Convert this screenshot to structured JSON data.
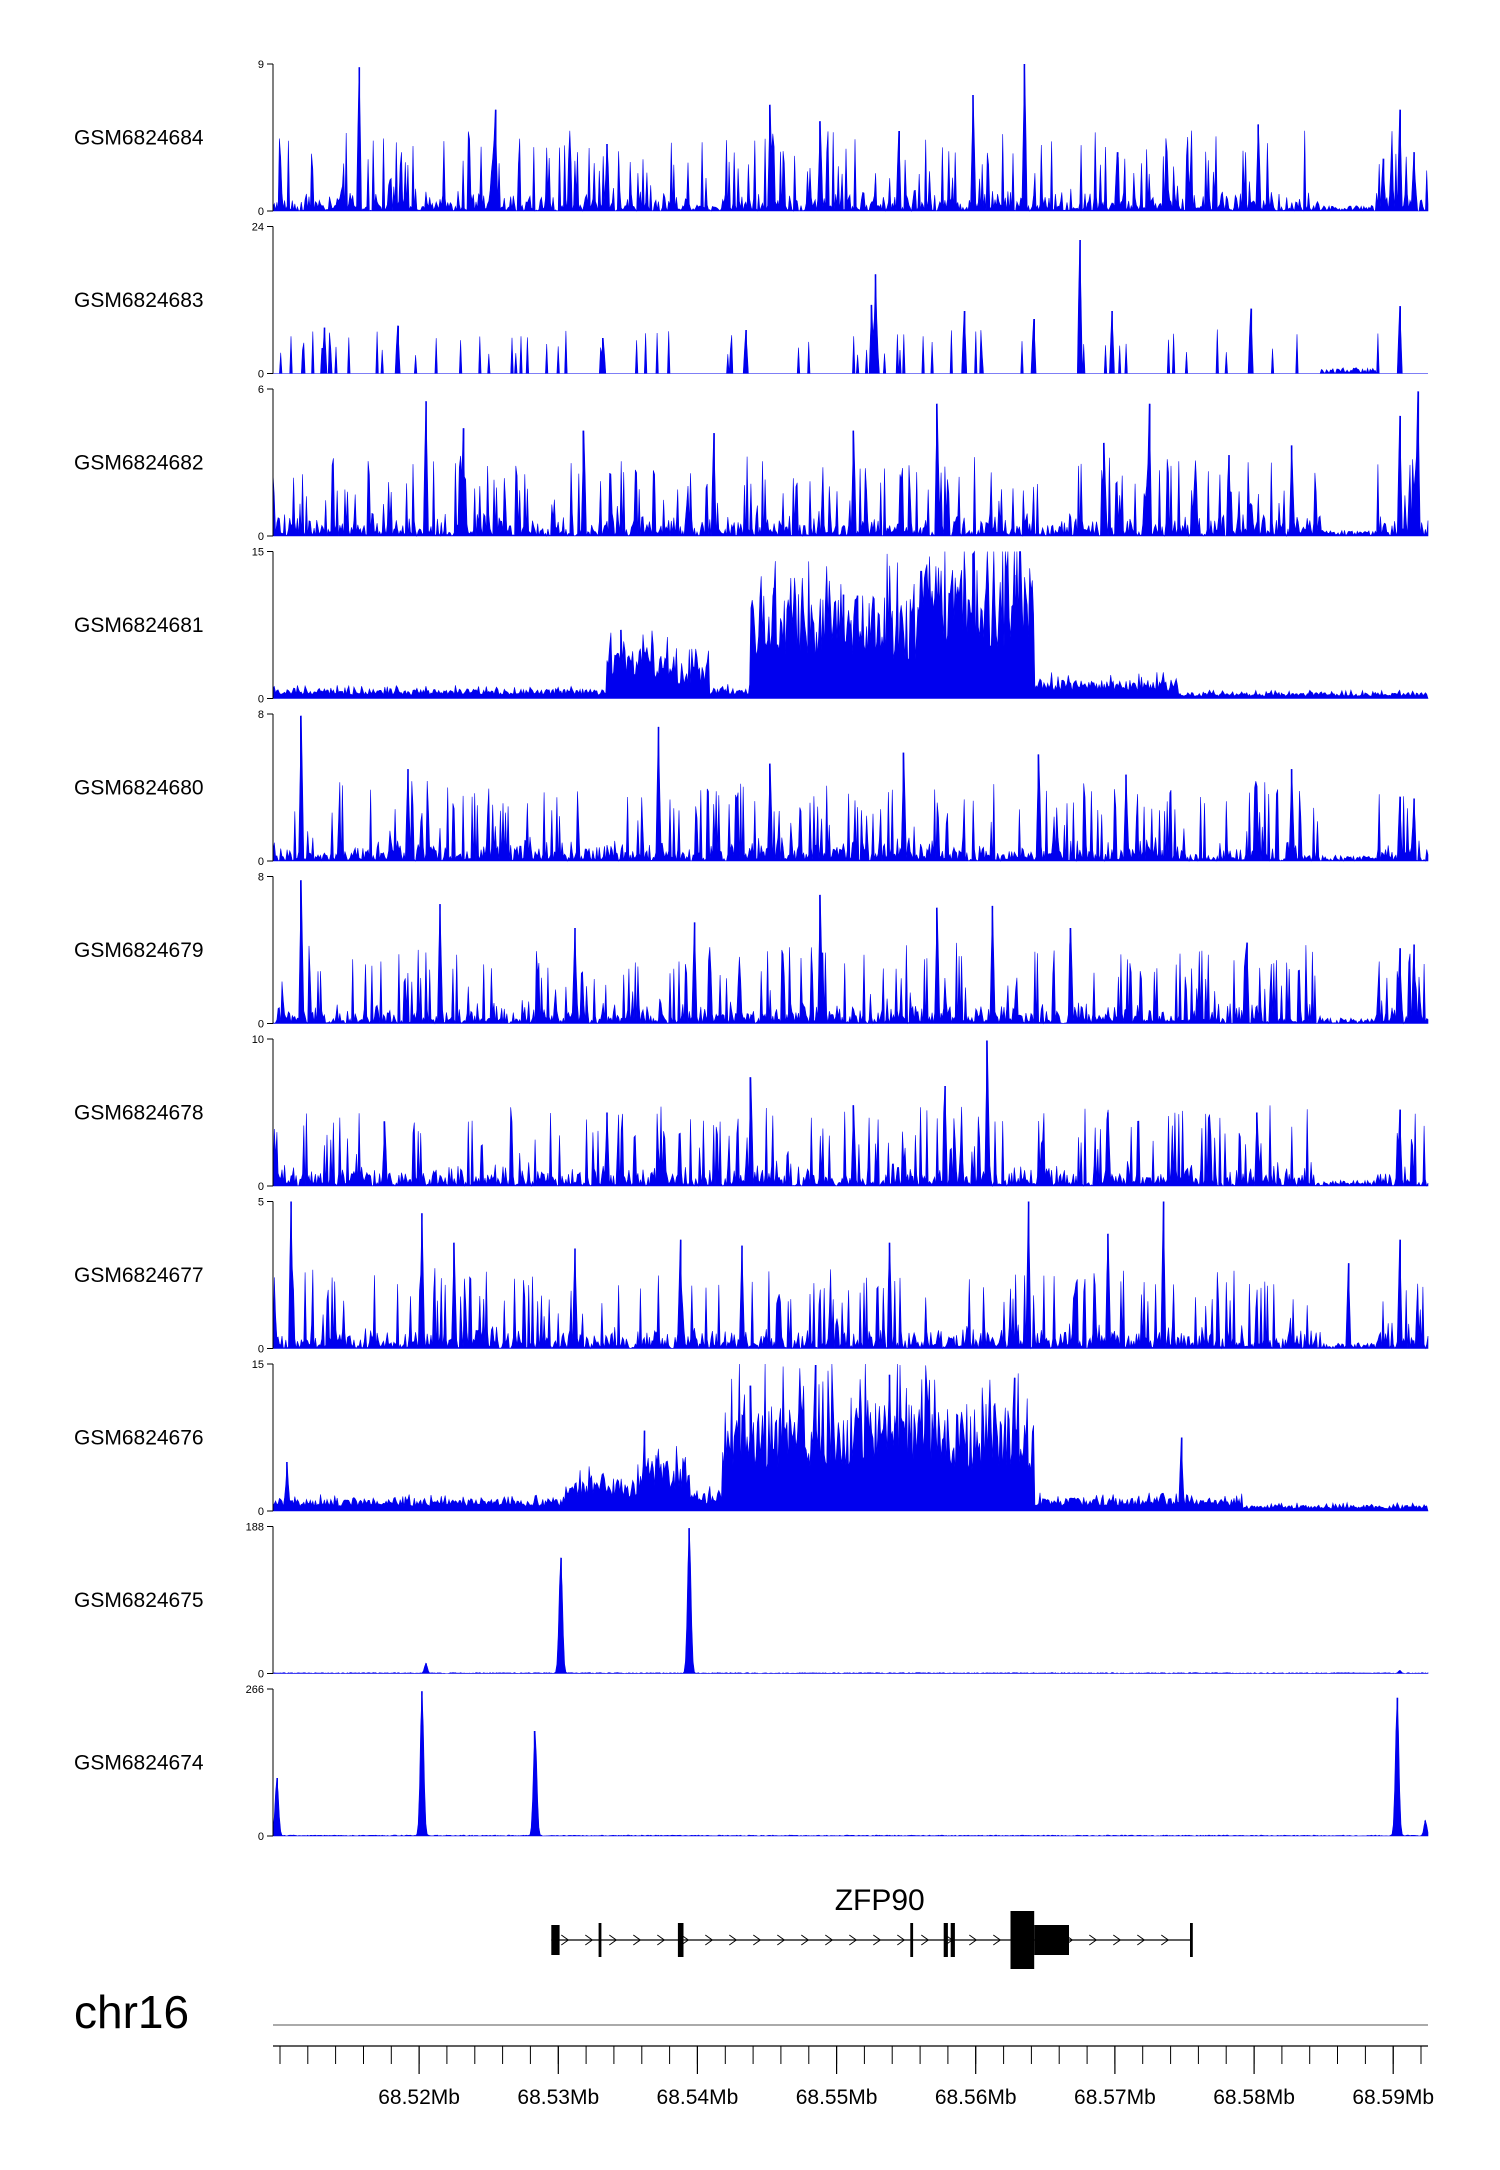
{
  "chart_data": {
    "type": "area",
    "genome": {
      "chromosome": "chr16",
      "xlim": [
        68.5095,
        68.5925
      ],
      "unit": "Mb"
    },
    "x_ticks": [
      68.52,
      68.53,
      68.54,
      68.55,
      68.56,
      68.57,
      68.58,
      68.59
    ],
    "x_tick_labels": [
      "68.52Mb",
      "68.53Mb",
      "68.54Mb",
      "68.55Mb",
      "68.56Mb",
      "68.57Mb",
      "68.58Mb",
      "68.59Mb"
    ],
    "colors": {
      "signal": "#0000ee",
      "axis": "#000000",
      "gene": "#000000"
    },
    "tracks": [
      {
        "name": "GSM6824684",
        "ymin": 0,
        "ymax": 9,
        "ymin_label": "0",
        "ymax_label": "9",
        "profile": "noisy",
        "peaks": [
          [
            68.5157,
            8.8
          ],
          [
            68.5255,
            6.2
          ],
          [
            68.5335,
            4.1
          ],
          [
            68.5452,
            6.5
          ],
          [
            68.5488,
            5.5
          ],
          [
            68.5545,
            4.9
          ],
          [
            68.5598,
            7.1
          ],
          [
            68.5635,
            9.0
          ],
          [
            68.5702,
            3.6
          ],
          [
            68.5803,
            5.3
          ],
          [
            68.5893,
            3.2
          ],
          [
            68.5905,
            6.2
          ],
          [
            68.5915,
            3.6
          ]
        ]
      },
      {
        "name": "GSM6824683",
        "ymin": 0,
        "ymax": 24,
        "ymin_label": "0",
        "ymax_label": "24",
        "profile": "sparse",
        "peaks": [
          [
            68.5132,
            7.5
          ],
          [
            68.5185,
            7.8
          ],
          [
            68.5332,
            5.8
          ],
          [
            68.5435,
            7.1
          ],
          [
            68.5525,
            11.2
          ],
          [
            68.5528,
            16.2
          ],
          [
            68.5592,
            10.2
          ],
          [
            68.5642,
            8.9
          ],
          [
            68.5675,
            21.8
          ],
          [
            68.5698,
            10.2
          ],
          [
            68.5798,
            10.6
          ],
          [
            68.5905,
            11.0
          ]
        ]
      },
      {
        "name": "GSM6824682",
        "ymin": 0,
        "ymax": 6,
        "ymin_label": "0",
        "ymax_label": "6",
        "profile": "noisy",
        "peaks": [
          [
            68.5205,
            5.5
          ],
          [
            68.5232,
            4.4
          ],
          [
            68.5318,
            4.3
          ],
          [
            68.5412,
            4.2
          ],
          [
            68.5512,
            4.3
          ],
          [
            68.5572,
            5.4
          ],
          [
            68.5692,
            3.8
          ],
          [
            68.5725,
            5.4
          ],
          [
            68.5782,
            3.3
          ],
          [
            68.5827,
            3.7
          ],
          [
            68.5905,
            4.9
          ],
          [
            68.5918,
            5.9
          ]
        ]
      },
      {
        "name": "GSM6824681",
        "ymin": 0,
        "ymax": 15,
        "ymin_label": "0",
        "ymax_label": "15",
        "profile": "broad",
        "blocks": [
          [
            68.5095,
            68.5335,
            0.8
          ],
          [
            68.5335,
            68.5385,
            4.5
          ],
          [
            68.5385,
            68.5408,
            3.2
          ],
          [
            68.5408,
            68.5438,
            0.9
          ],
          [
            68.5438,
            68.5558,
            8.8
          ],
          [
            68.5558,
            68.5642,
            11.5
          ],
          [
            68.5642,
            68.5745,
            1.6
          ],
          [
            68.5745,
            68.5925,
            0.5
          ]
        ],
        "peaks": [
          [
            68.5345,
            7.0
          ],
          [
            68.5455,
            11.3
          ],
          [
            68.5505,
            10.6
          ],
          [
            68.5515,
            10.5
          ],
          [
            68.5598,
            14.8
          ],
          [
            68.5628,
            12.6
          ]
        ]
      },
      {
        "name": "GSM6824680",
        "ymin": 0,
        "ymax": 8,
        "ymin_label": "0",
        "ymax_label": "8",
        "profile": "noisy",
        "peaks": [
          [
            68.5115,
            7.9
          ],
          [
            68.5192,
            5.0
          ],
          [
            68.5372,
            7.3
          ],
          [
            68.5452,
            5.3
          ],
          [
            68.5548,
            5.9
          ],
          [
            68.5645,
            5.8
          ],
          [
            68.5708,
            4.7
          ],
          [
            68.5827,
            5.0
          ],
          [
            68.5905,
            3.5
          ],
          [
            68.5915,
            3.4
          ]
        ]
      },
      {
        "name": "GSM6824679",
        "ymin": 0,
        "ymax": 8,
        "ymin_label": "0",
        "ymax_label": "8",
        "profile": "noisy",
        "peaks": [
          [
            68.5115,
            7.8
          ],
          [
            68.5215,
            6.5
          ],
          [
            68.5312,
            5.2
          ],
          [
            68.5398,
            5.5
          ],
          [
            68.5488,
            7.0
          ],
          [
            68.5572,
            6.3
          ],
          [
            68.5612,
            6.4
          ],
          [
            68.5668,
            5.2
          ],
          [
            68.5795,
            4.4
          ],
          [
            68.5905,
            4.1
          ],
          [
            68.5915,
            4.3
          ]
        ]
      },
      {
        "name": "GSM6824678",
        "ymin": 0,
        "ymax": 10,
        "ymin_label": "0",
        "ymax_label": "10",
        "profile": "noisy",
        "peaks": [
          [
            68.5175,
            4.4
          ],
          [
            68.5335,
            5.0
          ],
          [
            68.5438,
            7.4
          ],
          [
            68.5512,
            5.5
          ],
          [
            68.5578,
            6.8
          ],
          [
            68.5608,
            9.9
          ],
          [
            68.5695,
            5.0
          ],
          [
            68.5802,
            5.0
          ],
          [
            68.5905,
            5.2
          ]
        ]
      },
      {
        "name": "GSM6824677",
        "ymin": 0,
        "ymax": 5,
        "ymin_label": "0",
        "ymax_label": "5",
        "profile": "noisy",
        "peaks": [
          [
            68.5108,
            5.0
          ],
          [
            68.5202,
            4.6
          ],
          [
            68.5225,
            3.6
          ],
          [
            68.5312,
            3.4
          ],
          [
            68.5388,
            3.7
          ],
          [
            68.5432,
            3.5
          ],
          [
            68.5538,
            3.6
          ],
          [
            68.5638,
            5.0
          ],
          [
            68.5695,
            3.9
          ],
          [
            68.5735,
            5.0
          ],
          [
            68.5868,
            2.9
          ],
          [
            68.5905,
            3.7
          ]
        ]
      },
      {
        "name": "GSM6824676",
        "ymin": 0,
        "ymax": 15,
        "ymin_label": "0",
        "ymax_label": "15",
        "profile": "broad",
        "blocks": [
          [
            68.5095,
            68.5305,
            1.0
          ],
          [
            68.5305,
            68.5362,
            2.8
          ],
          [
            68.5362,
            68.5395,
            4.5
          ],
          [
            68.5395,
            68.5418,
            1.5
          ],
          [
            68.5418,
            68.5632,
            9.2
          ],
          [
            68.5632,
            68.5642,
            7.5
          ],
          [
            68.5642,
            68.5792,
            1.1
          ],
          [
            68.5792,
            68.5925,
            0.5
          ]
        ],
        "peaks": [
          [
            68.5105,
            5.0
          ],
          [
            68.5362,
            8.2
          ],
          [
            68.5438,
            12.8
          ],
          [
            68.5485,
            14.9
          ],
          [
            68.5538,
            13.9
          ],
          [
            68.5628,
            13.6
          ],
          [
            68.5748,
            7.5
          ]
        ]
      },
      {
        "name": "GSM6824675",
        "ymin": 0,
        "ymax": 188,
        "ymin_label": "0",
        "ymax_label": "188",
        "profile": "spiky",
        "peaks": [
          [
            68.5205,
            13
          ],
          [
            68.5302,
            148
          ],
          [
            68.5394,
            186
          ],
          [
            68.5905,
            4
          ]
        ]
      },
      {
        "name": "GSM6824674",
        "ymin": 0,
        "ymax": 266,
        "ymin_label": "0",
        "ymax_label": "266",
        "profile": "spiky",
        "peaks": [
          [
            68.5098,
            105
          ],
          [
            68.5202,
            262
          ],
          [
            68.5283,
            190
          ],
          [
            68.5903,
            250
          ],
          [
            68.5923,
            28
          ]
        ]
      }
    ],
    "gene": {
      "name": "ZFP90",
      "strand": "+",
      "start": 68.5295,
      "end": 68.5755,
      "exons": [
        [
          68.5295,
          68.5301,
          "utr"
        ],
        [
          68.5329,
          68.5331,
          "utr"
        ],
        [
          68.5386,
          68.539,
          "utr"
        ],
        [
          68.5553,
          68.5555,
          "utr"
        ],
        [
          68.5577,
          68.558,
          "utr"
        ],
        [
          68.5582,
          68.5585,
          "utr"
        ],
        [
          68.5625,
          68.5642,
          "cds"
        ],
        [
          68.5642,
          68.5667,
          "utr"
        ],
        [
          68.5754,
          68.5756,
          "utr"
        ]
      ]
    }
  }
}
